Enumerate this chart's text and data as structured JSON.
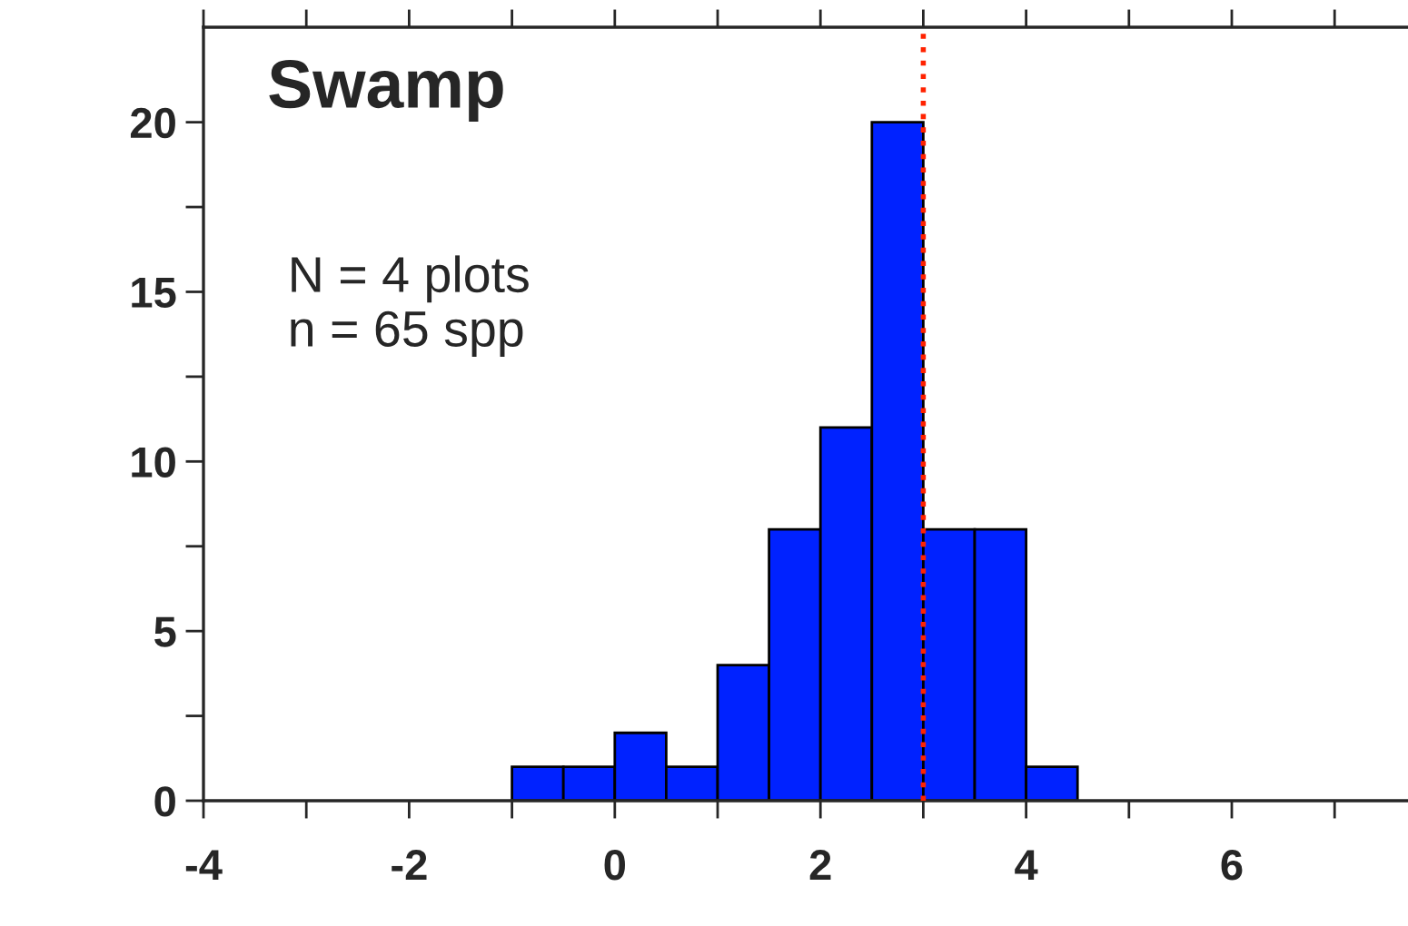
{
  "chart_data": {
    "type": "histogram",
    "title": "Swamp",
    "annotations": [
      "N = 4 plots\nn = 65 spp"
    ],
    "bins": [
      -1,
      -0.5,
      0,
      0.5,
      1,
      1.5,
      2,
      2.5,
      3,
      3.5,
      4,
      4.5
    ],
    "values": [
      1,
      1,
      2,
      1,
      4,
      8,
      11,
      20,
      8,
      8,
      1
    ],
    "color": "#0022ff",
    "xlim": [
      -4,
      7.7
    ],
    "ylim": [
      0,
      22.8
    ],
    "xticks": [
      -4,
      {
        "value": -3,
        "label": null
      },
      -2,
      {
        "value": -1,
        "label": null
      },
      0,
      {
        "value": 1,
        "label": null
      },
      2,
      {
        "value": 3,
        "label": null
      },
      4,
      {
        "value": 5,
        "label": null
      },
      6,
      {
        "value": 7,
        "label": null
      }
    ],
    "yticks": [
      0,
      {
        "value": 2.5,
        "label": null
      },
      5,
      {
        "value": 7.5,
        "label": null
      },
      10,
      {
        "value": 12.5,
        "label": null
      },
      15,
      {
        "value": 17.5,
        "label": null
      },
      20
    ],
    "ref_lines": [
      {
        "axis": "x",
        "value": 3,
        "color": "#ff2200",
        "line_style": "dotted"
      }
    ],
    "grid": false,
    "legend": false
  }
}
